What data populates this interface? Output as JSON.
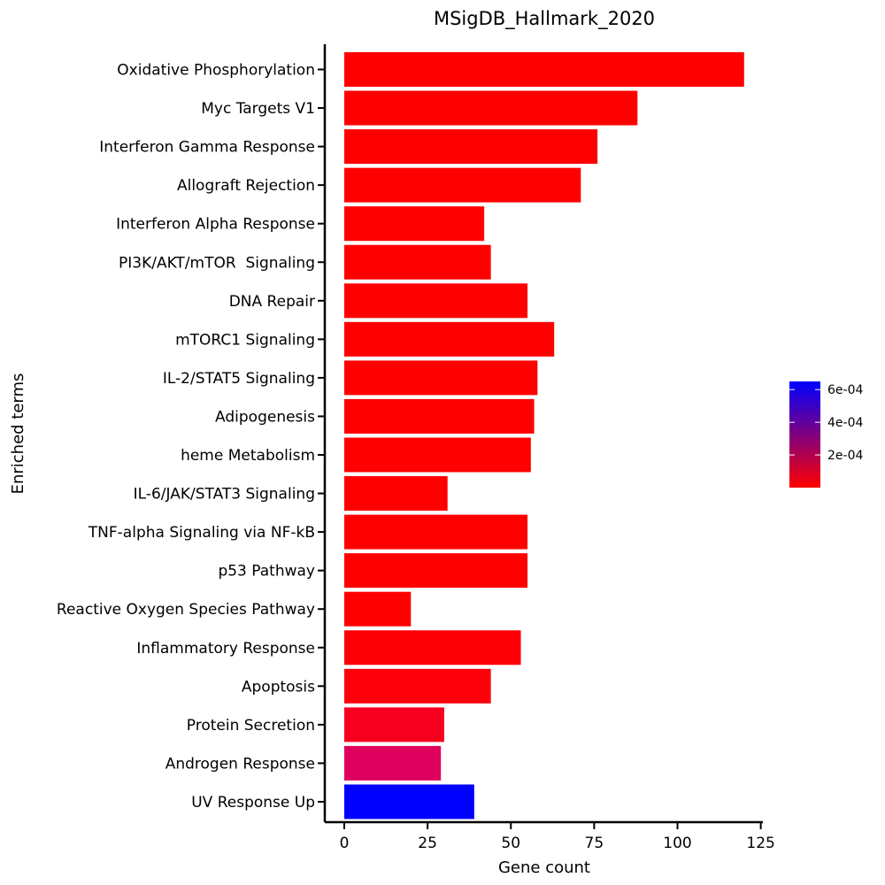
{
  "chart_data": {
    "type": "bar",
    "orientation": "horizontal",
    "title": "MSigDB_Hallmark_2020",
    "xlabel": "Gene count",
    "ylabel": "Enriched terms",
    "xlim": [
      -6,
      125
    ],
    "xticks": [
      0,
      25,
      50,
      75,
      100,
      125
    ],
    "categories": [
      "Oxidative Phosphorylation",
      "Myc Targets V1",
      "Interferon Gamma Response",
      "Allograft Rejection",
      "Interferon Alpha Response",
      "PI3K/AKT/mTOR  Signaling",
      "DNA Repair",
      "mTORC1 Signaling",
      "IL-2/STAT5 Signaling",
      "Adipogenesis",
      "heme Metabolism",
      "IL-6/JAK/STAT3 Signaling",
      "TNF-alpha Signaling via NF-kB",
      "p53 Pathway",
      "Reactive Oxygen Species Pathway",
      "Inflammatory Response",
      "Apoptosis",
      "Protein Secretion",
      "Androgen Response",
      "UV Response Up"
    ],
    "values": [
      120,
      88,
      76,
      71,
      42,
      44,
      55,
      63,
      58,
      57,
      56,
      31,
      55,
      55,
      20,
      53,
      44,
      30,
      29,
      39
    ],
    "colors": [
      "#ff0000",
      "#ff0000",
      "#ff0000",
      "#ff0000",
      "#ff0000",
      "#ff0000",
      "#ff0000",
      "#ff0000",
      "#ff0000",
      "#ff0000",
      "#ff0000",
      "#ff0000",
      "#ff0000",
      "#ff0000",
      "#ff0000",
      "#fc0008",
      "#fc000c",
      "#f70020",
      "#e0005e",
      "#0000ff"
    ],
    "grid": false,
    "legend": {
      "placement": "right",
      "type": "colorbar",
      "range": [
        0,
        0.00065
      ],
      "ticks": [
        0.0002,
        0.0004,
        0.0006
      ],
      "tick_labels": [
        "2e-04",
        "4e-04",
        "6e-04"
      ],
      "color_low": "#ff0000",
      "color_high": "#0000ff"
    }
  }
}
